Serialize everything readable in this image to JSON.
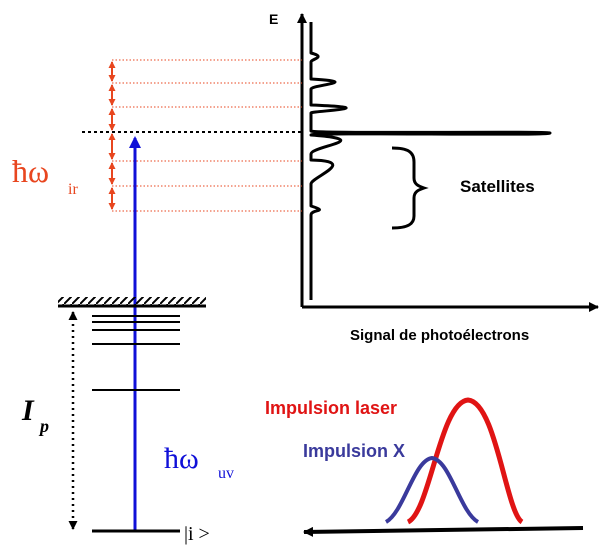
{
  "spectrum": {
    "axis_y_label": "E",
    "axis_x_label": "Signal de photoélectrons",
    "satellites_label": "Satellites"
  },
  "photons": {
    "ir_symbol": "ħω",
    "ir_sub": "ir",
    "uv_symbol": "ħω",
    "uv_sub": "uv"
  },
  "potential": {
    "symbol": "I",
    "sub": "p"
  },
  "state": {
    "label": "|i >"
  },
  "pulses": {
    "laser_label": "Impulsion laser",
    "xray_label": "Impulsion X"
  },
  "colors": {
    "ir": "#e8461f",
    "uv": "#1010d8",
    "laser": "#e01414",
    "xray": "#3a3a9c",
    "ink": "#000000"
  }
}
